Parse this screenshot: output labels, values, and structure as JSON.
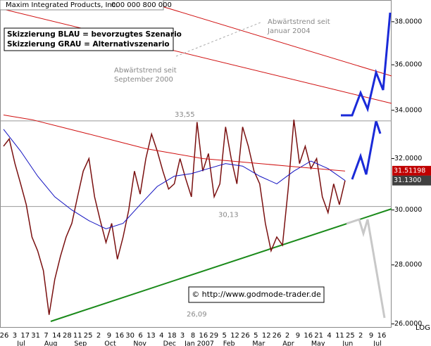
{
  "chart_data": {
    "type": "line",
    "title": "Maxim Integrated Products, Inc.",
    "subtitle": "000 000 800 000",
    "log_scale": true,
    "grid": false,
    "ylim": [
      25.9,
      39.05
    ],
    "yticks": [
      {
        "value": 26,
        "label": "26.0000"
      },
      {
        "value": 28,
        "label": "28.0000"
      },
      {
        "value": 30,
        "label": "30.0000"
      },
      {
        "value": 32,
        "label": "32.0000"
      },
      {
        "value": 34,
        "label": "34.0000"
      },
      {
        "value": 36,
        "label": "36.0000"
      },
      {
        "value": 38,
        "label": "38.0000"
      }
    ],
    "y_axis_note": "LOG",
    "x_day_labels": [
      "26",
      "3",
      "17",
      "31",
      "7",
      "14",
      "28",
      "11",
      "25",
      "2",
      "9",
      "16",
      "30",
      "6",
      "13",
      "4",
      "18",
      "3",
      "8",
      "16",
      "29",
      "5",
      "12",
      "26",
      "5",
      "12",
      "26",
      "2",
      "9",
      "16",
      "21",
      "4",
      "11",
      "25",
      "2",
      "9",
      "16"
    ],
    "x_month_labels": [
      "Jul",
      "Aug",
      "Sep",
      "Oct",
      "Nov",
      "Dec",
      "Jan 2007",
      "Feb",
      "Mar",
      "Apr",
      "May",
      "Jun",
      "Jul"
    ],
    "series": [
      {
        "name": "Kurs",
        "color": "#7a1010",
        "values": [
          32.5,
          32.8,
          31.8,
          31.0,
          30.2,
          29.0,
          28.5,
          27.8,
          26.3,
          27.5,
          28.3,
          29.0,
          29.5,
          30.5,
          31.5,
          32.0,
          30.5,
          29.6,
          28.8,
          29.5,
          28.2,
          29.0,
          30.0,
          31.5,
          30.6,
          32.0,
          33.0,
          32.3,
          31.5,
          30.8,
          31.0,
          32.0,
          31.2,
          30.5,
          33.5,
          31.5,
          32.2,
          30.5,
          31.0,
          33.3,
          32.0,
          31.0,
          33.3,
          32.5,
          31.5,
          31.0,
          29.5,
          28.5,
          29.0,
          28.7,
          30.8,
          33.6,
          31.8,
          32.5,
          31.6,
          32.0,
          30.5,
          29.9,
          31.0,
          30.2,
          31.13
        ]
      },
      {
        "name": "GD50",
        "color": "#1010c0",
        "values": [
          33.2,
          32.3,
          31.3,
          30.5,
          30.0,
          29.6,
          29.3,
          29.5,
          30.2,
          30.9,
          31.3,
          31.4,
          31.6,
          31.8,
          31.7,
          31.3,
          31.0,
          31.5,
          31.9,
          31.6,
          31.13
        ]
      },
      {
        "name": "GD200",
        "color": "#d01010",
        "values": [
          33.8,
          33.6,
          33.3,
          33.0,
          32.7,
          32.4,
          32.2,
          32.0,
          31.9,
          31.8,
          31.7,
          31.6,
          31.5
        ]
      }
    ],
    "price_labels": [
      {
        "value": 31.51198,
        "label": "31.51198",
        "color": "#c00000"
      },
      {
        "value": 31.13,
        "label": "31.1300",
        "color": "#404040"
      }
    ],
    "levels": [
      {
        "value": 33.55,
        "label": "33,55"
      },
      {
        "value": 30.13,
        "label": "30,13"
      }
    ],
    "support_label": "26,09",
    "legend_lines": [
      "Skizzierung BLAU = bevorzugtes Szenario",
      "Skizzierung GRAU = Alternativszenario"
    ],
    "annotations": [
      "Abwärtstrend seit Januar 2004",
      "Abwärtstrend seit September 2000"
    ],
    "copyright": "© http://www.godmode-trader.de"
  }
}
